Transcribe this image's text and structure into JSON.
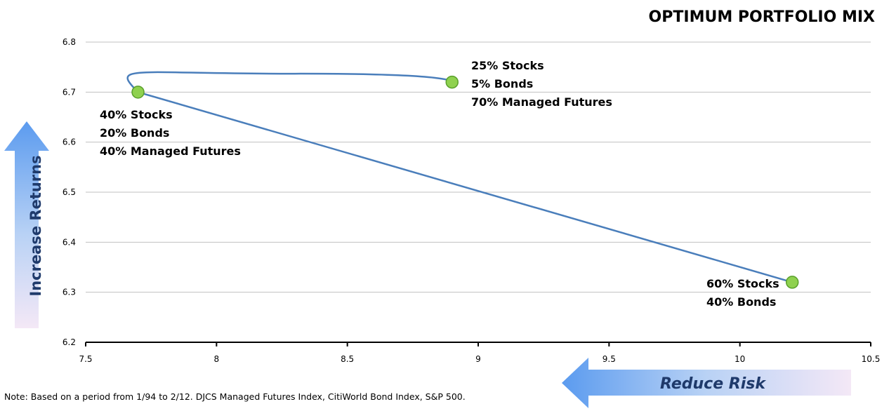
{
  "title": "OPTIMUM PORTFOLIO MIX",
  "note": "Note: Based on a period from 1/94 to 2/12. DJCS Managed Futures Index, CitiWorld Bond Index, S&P 500.",
  "y_arrow_label": "Increase Returns",
  "x_arrow_label": "Reduce Risk",
  "colors": {
    "line": "#4a7ebb",
    "point_fill": "#8fd14f",
    "point_stroke": "#5aa02c",
    "grid": "#c0c0c0",
    "arrow_text": "#1f3a6b"
  },
  "chart_data": {
    "type": "scatter",
    "title": "OPTIMUM PORTFOLIO MIX",
    "xlim": [
      7.5,
      10.5
    ],
    "ylim": [
      6.2,
      6.8
    ],
    "x_ticks": [
      "7.5",
      "8",
      "8.5",
      "9",
      "9.5",
      "10",
      "10.5"
    ],
    "y_ticks": [
      "6.2",
      "6.3",
      "6.4",
      "6.5",
      "6.6",
      "6.7",
      "6.8"
    ],
    "grid": true,
    "points": [
      {
        "x": 10.2,
        "y": 6.32,
        "label": [
          "60% Stocks",
          "40% Bonds"
        ]
      },
      {
        "x": 7.7,
        "y": 6.7,
        "label": [
          "40% Stocks",
          "20% Bonds",
          "40% Managed Futures"
        ]
      },
      {
        "x": 8.9,
        "y": 6.72,
        "label": [
          "25% Stocks",
          "5% Bonds",
          "70% Managed Futures"
        ]
      }
    ]
  }
}
